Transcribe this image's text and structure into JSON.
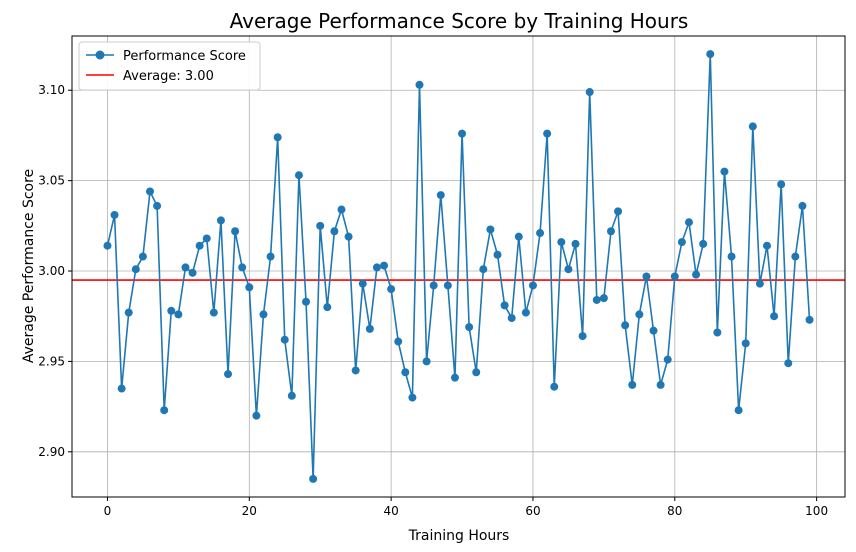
{
  "chart_data": {
    "type": "line",
    "title": "Average Performance Score by Training Hours",
    "xlabel": "Training Hours",
    "ylabel": "Average Performance Score",
    "xlim": [
      -5,
      104
    ],
    "ylim": [
      2.875,
      3.13
    ],
    "xticks": [
      0,
      20,
      40,
      60,
      80,
      100
    ],
    "yticks": [
      2.9,
      2.95,
      3.0,
      3.05,
      3.1
    ],
    "xtick_labels": [
      "0",
      "20",
      "40",
      "60",
      "80",
      "100"
    ],
    "ytick_labels": [
      "2.90",
      "2.95",
      "3.00",
      "3.05",
      "3.10"
    ],
    "grid": true,
    "legend_position": "top-left",
    "series": [
      {
        "name": "Performance Score",
        "color": "#1f77b4",
        "marker": "circle",
        "x": [
          0,
          1,
          2,
          3,
          4,
          5,
          6,
          7,
          8,
          9,
          10,
          11,
          12,
          13,
          14,
          15,
          16,
          17,
          18,
          19,
          20,
          21,
          22,
          23,
          24,
          25,
          26,
          27,
          28,
          29,
          30,
          31,
          32,
          33,
          34,
          35,
          36,
          37,
          38,
          39,
          40,
          41,
          42,
          43,
          44,
          45,
          46,
          47,
          48,
          49,
          50,
          51,
          52,
          53,
          54,
          55,
          56,
          57,
          58,
          59,
          60,
          61,
          62,
          63,
          64,
          65,
          66,
          67,
          68,
          69,
          70,
          71,
          72,
          73,
          74,
          75,
          76,
          77,
          78,
          79,
          80,
          81,
          82,
          83,
          84,
          85,
          86,
          87,
          88,
          89,
          90,
          91,
          92,
          93,
          94,
          95,
          96,
          97,
          98,
          99
        ],
        "values": [
          3.014,
          3.031,
          2.935,
          2.977,
          3.001,
          3.008,
          3.044,
          3.036,
          2.923,
          2.978,
          2.976,
          3.002,
          2.999,
          3.014,
          3.018,
          2.977,
          3.028,
          2.943,
          3.022,
          3.002,
          2.991,
          2.92,
          2.976,
          3.008,
          3.074,
          2.962,
          2.931,
          3.053,
          2.983,
          2.885,
          3.025,
          2.98,
          3.022,
          3.034,
          3.019,
          2.945,
          2.993,
          2.968,
          3.002,
          3.003,
          2.99,
          2.961,
          2.944,
          2.93,
          3.103,
          2.95,
          2.992,
          3.042,
          2.992,
          2.941,
          3.076,
          2.969,
          2.944,
          3.001,
          3.023,
          3.009,
          2.981,
          2.974,
          3.019,
          2.977,
          2.992,
          3.021,
          3.076,
          2.936,
          3.016,
          3.001,
          3.015,
          2.964,
          3.099,
          2.984,
          2.985,
          3.022,
          3.033,
          2.97,
          2.937,
          2.976,
          2.997,
          2.967,
          2.937,
          2.951,
          2.997,
          3.016,
          3.027,
          2.998,
          3.015,
          3.12,
          2.966,
          3.055,
          3.008,
          2.923,
          2.96,
          3.08,
          2.993,
          3.014,
          2.975,
          3.048,
          2.949,
          3.008,
          3.036,
          2.973
        ]
      }
    ],
    "reference_line": {
      "name": "Average: 3.00",
      "value": 2.995,
      "color": "#ff0000"
    }
  }
}
